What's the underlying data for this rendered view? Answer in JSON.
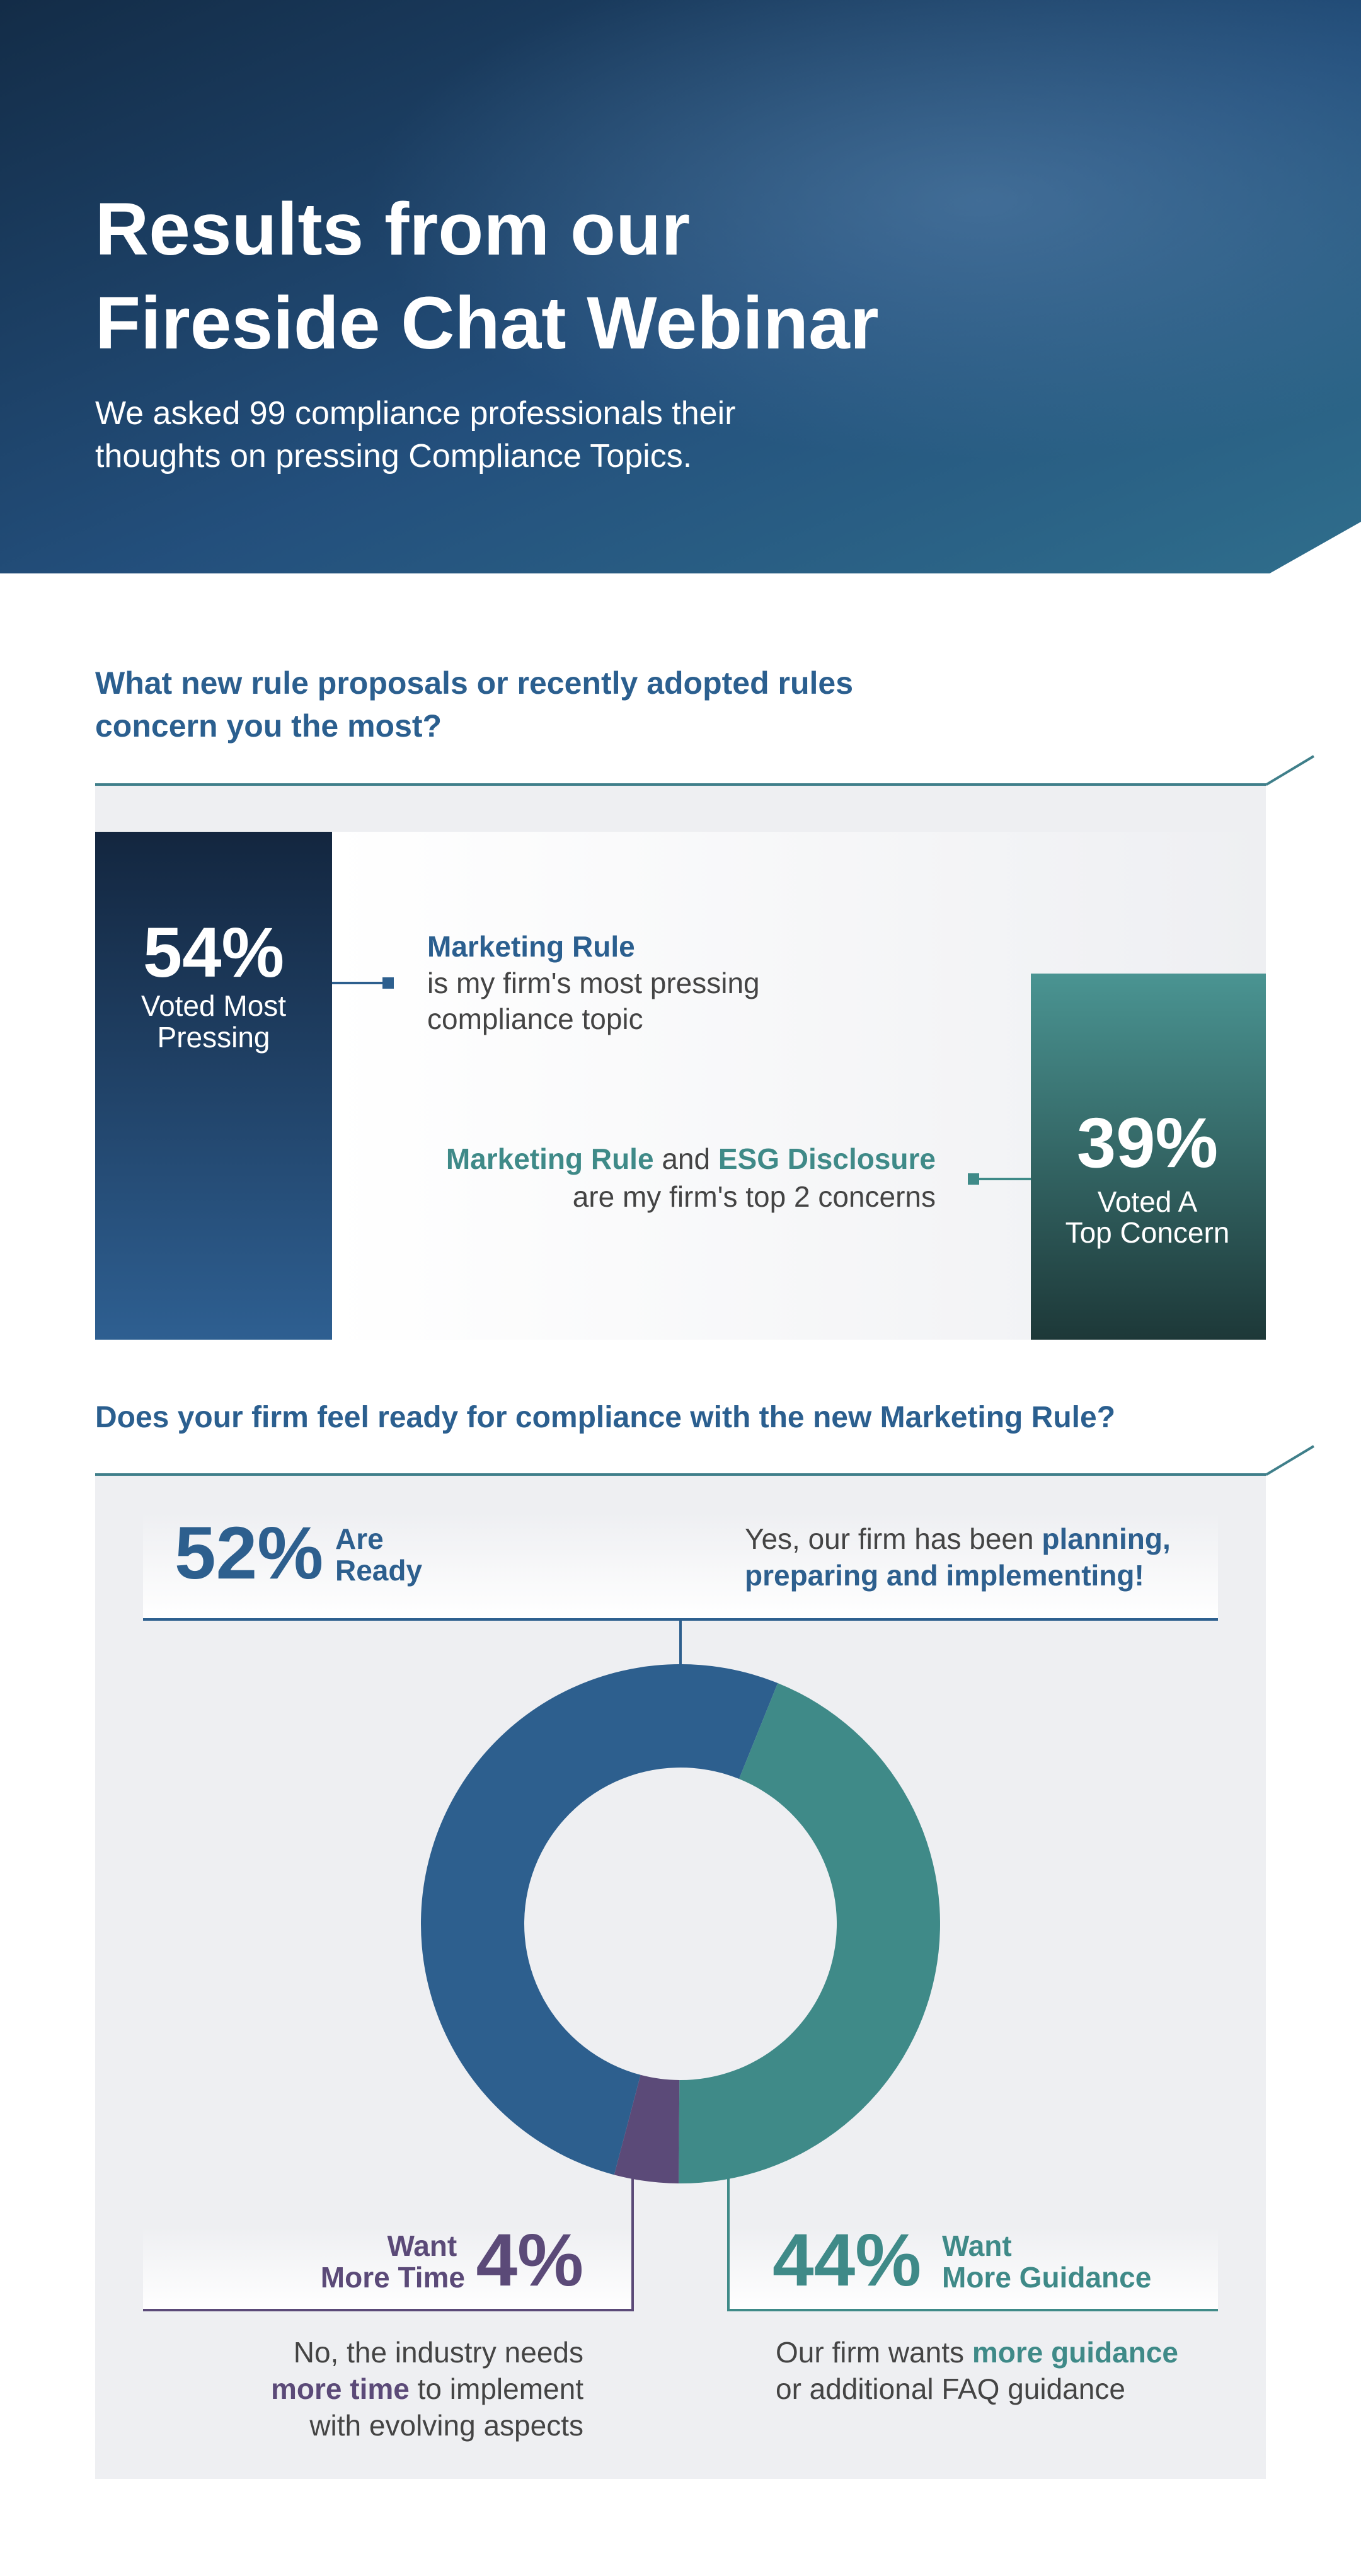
{
  "header": {
    "title": [
      "Results from our",
      "Fireside Chat Webinar"
    ],
    "subtitle": [
      "We asked 99 compliance professionals their",
      "thoughts on pressing Compliance Topics."
    ]
  },
  "question1": {
    "title": [
      "What new rule proposals or recently adopted rules",
      "concern you the most?"
    ],
    "most_pressing": {
      "value": "54%",
      "label": [
        "Voted Most",
        "Pressing"
      ],
      "topic": "Marketing Rule",
      "text": [
        "is my firm's most pressing",
        "compliance topic"
      ]
    },
    "top_concern": {
      "value": "39%",
      "label": [
        "Voted A",
        "Top Concern"
      ],
      "lines": [
        [
          {
            "text": "Marketing Rule",
            "bold": true
          },
          {
            "text": " and "
          },
          {
            "text": "ESG Disclosure",
            "bold": true
          }
        ],
        [
          {
            "text": "are my firm's top 2 concerns"
          }
        ]
      ]
    }
  },
  "chart_data": {
    "type": "donut",
    "title": "Does your firm feel ready for compliance with the new Marketing Rule?",
    "categories": [
      "Are Ready",
      "Want More Guidance",
      "Want More Time"
    ],
    "values": [
      52,
      44,
      4
    ],
    "value_labels": [
      "52%",
      "44%",
      "4%"
    ],
    "colors": [
      "#2d5f8e",
      "#3f8a88",
      "#5b4a78"
    ],
    "descriptions": [
      [
        [
          {
            "text": "Yes, our firm has been "
          },
          {
            "text": "planning,",
            "bold": true
          }
        ],
        [
          {
            "text": "preparing and implementing!",
            "bold": true
          }
        ]
      ],
      [
        [
          {
            "text": "Our firm wants "
          },
          {
            "text": "more guidance",
            "bold": true
          }
        ],
        [
          {
            "text": "or additional FAQ guidance"
          }
        ]
      ],
      [
        [
          {
            "text": "No, the industry needs"
          }
        ],
        [
          {
            "text": "more time",
            "bold": true
          },
          {
            "text": " to implement"
          }
        ],
        [
          {
            "text": "with evolving aspects"
          }
        ]
      ]
    ]
  }
}
